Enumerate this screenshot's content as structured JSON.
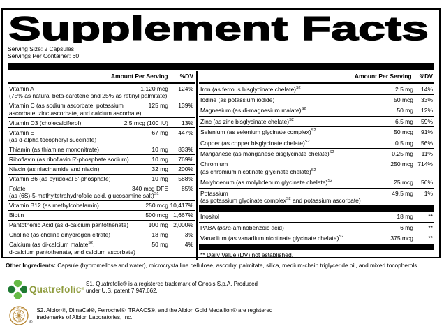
{
  "title": "Supplement Facts",
  "serving": {
    "size": "Serving Size: 2 Capsules",
    "per_container": "Servings Per Container: 60"
  },
  "columns": {
    "header": {
      "amount": "Amount Per Serving",
      "dv": "%DV"
    },
    "left_rows": [
      {
        "name": "Vitamin A",
        "detail": "(75% as natural beta-carotene and 25% as retinyl palmitate)",
        "amount": "1,120 mcg",
        "dv": "124%"
      },
      {
        "name": "Vitamin C (as sodium ascorbate, potassium ascorbate, zinc ascorbate, and calcium ascorbate)",
        "amount": "125 mg",
        "dv": "139%"
      },
      {
        "name": "Vitamin D3 (cholecalciferol)",
        "amount": "2.5 mcg (100 IU)",
        "dv": "13%"
      },
      {
        "name": "Vitamin E",
        "detail": "(as d-alpha tocopheryl succinate)",
        "amount": "67 mg",
        "dv": "447%"
      },
      {
        "name": "Thiamin (as thiamine mononitrate)",
        "amount": "10 mg",
        "dv": "833%"
      },
      {
        "name": "Riboflavin (as riboflavin 5'-phosphate sodium)",
        "amount": "10 mg",
        "dv": "769%"
      },
      {
        "name": "Niacin (as niacinamide and niacin)",
        "amount": "32 mg",
        "dv": "200%"
      },
      {
        "name": "Vitamin B6 (as pyridoxal 5'-phosphate)",
        "amount": "10 mg",
        "dv": "588%"
      },
      {
        "name": "Folate",
        "detail": "(as (6S)-5-methyltetrahydrofolic acid, glucosamine salt)[S1]",
        "amount": "340 mcg DFE",
        "dv": "85%"
      },
      {
        "name": "Vitamin B12 (as methylcobalamin)",
        "amount": "250 mcg",
        "dv": "10,417%"
      },
      {
        "name": "Biotin",
        "amount": "500 mcg",
        "dv": "1,667%"
      },
      {
        "name": "Pantothenic Acid (as d-calcium pantothenate)",
        "amount": "100 mg",
        "dv": "2,000%"
      },
      {
        "name": "Choline (as choline dihydrogen citrate)",
        "amount": "18 mg",
        "dv": "3%"
      },
      {
        "name": "Calcium (as di-calcium malate[S2],",
        "detail": "d-calcium pantothenate, and calcium ascorbate)",
        "amount": "50 mg",
        "dv": "4%"
      }
    ],
    "right_rows": [
      {
        "name": "Iron (as ferrous bisglycinate chelate)[S2]",
        "amount": "2.5 mg",
        "dv": "14%"
      },
      {
        "name": "Iodine (as potassium iodide)",
        "amount": "50 mcg",
        "dv": "33%"
      },
      {
        "name": "Magnesium (as di-magnesium malate)[S2]",
        "amount": "50 mg",
        "dv": "12%"
      },
      {
        "name": "Zinc (as zinc bisglycinate chelate)[S2]",
        "amount": "6.5 mg",
        "dv": "59%"
      },
      {
        "name": "Selenium (as selenium glycinate complex)[S2]",
        "amount": "50 mcg",
        "dv": "91%"
      },
      {
        "name": "Copper (as copper bisglycinate chelate)[S2]",
        "amount": "0.5 mg",
        "dv": "56%"
      },
      {
        "name": "Manganese (as manganese bisglycinate chelate)[S2]",
        "amount": "0.25 mg",
        "dv": "11%"
      },
      {
        "name": "Chromium",
        "detail": "(as chromium nicotinate glycinate chelate)[S2]",
        "amount": "250 mcg",
        "dv": "714%"
      },
      {
        "name": "Molybdenum (as molybdenum glycinate chelate)[S2]",
        "amount": "25 mcg",
        "dv": "56%"
      },
      {
        "name": "Potassium",
        "detail": "(as potassium glycinate complex[S2] and potassium ascorbate)",
        "amount": "49.5 mg",
        "dv": "1%"
      },
      {
        "type": "bar"
      },
      {
        "name": "Inositol",
        "amount": "18 mg",
        "dv": "**"
      },
      {
        "name": "PABA ([i]para[/i]-aminobenzoic acid)",
        "amount": "6 mg",
        "dv": "**"
      },
      {
        "name": "Vanadium (as vanadium nicotinate glycinate chelate)[S2]",
        "amount": "375 mcg",
        "dv": "**"
      },
      {
        "type": "bar"
      },
      {
        "type": "note",
        "text": "** Daily Value (DV) not established."
      }
    ]
  },
  "other_ingredients": {
    "label": "Other Ingredients:",
    "text": "Capsule (hypromellose and water), microcrystalline cellulose, ascorbyl palmitate, silica, medium-chain triglyceride oil, and mixed tocopherols."
  },
  "trademarks": [
    {
      "logo": "quatrefolic-clover",
      "logo_text": "Quatrefolic",
      "reg_mark": "®",
      "text": "S1. Quatrefolic® is a registered trademark of Gnosis S.p.A. Produced under U.S. patent 7,947,662."
    },
    {
      "logo": "albion-gold-medallion",
      "logo_top": "ALBION",
      "logo_bottom": "MINERALS",
      "reg_mark": "®",
      "text": "S2. Albion®, DimaCal®, Ferrochel®, TRAACS®, and the Albion Gold Medallion® are registered trademarks of Albion Laboratories, Inc."
    }
  ],
  "colors": {
    "ink": "#000000",
    "quatrefolic_green_dark": "#1f7a33",
    "quatrefolic_green_light": "#66bb46",
    "quatrefolic_wordmark": "#8f9c3f",
    "albion_gold": "#b5832e"
  }
}
